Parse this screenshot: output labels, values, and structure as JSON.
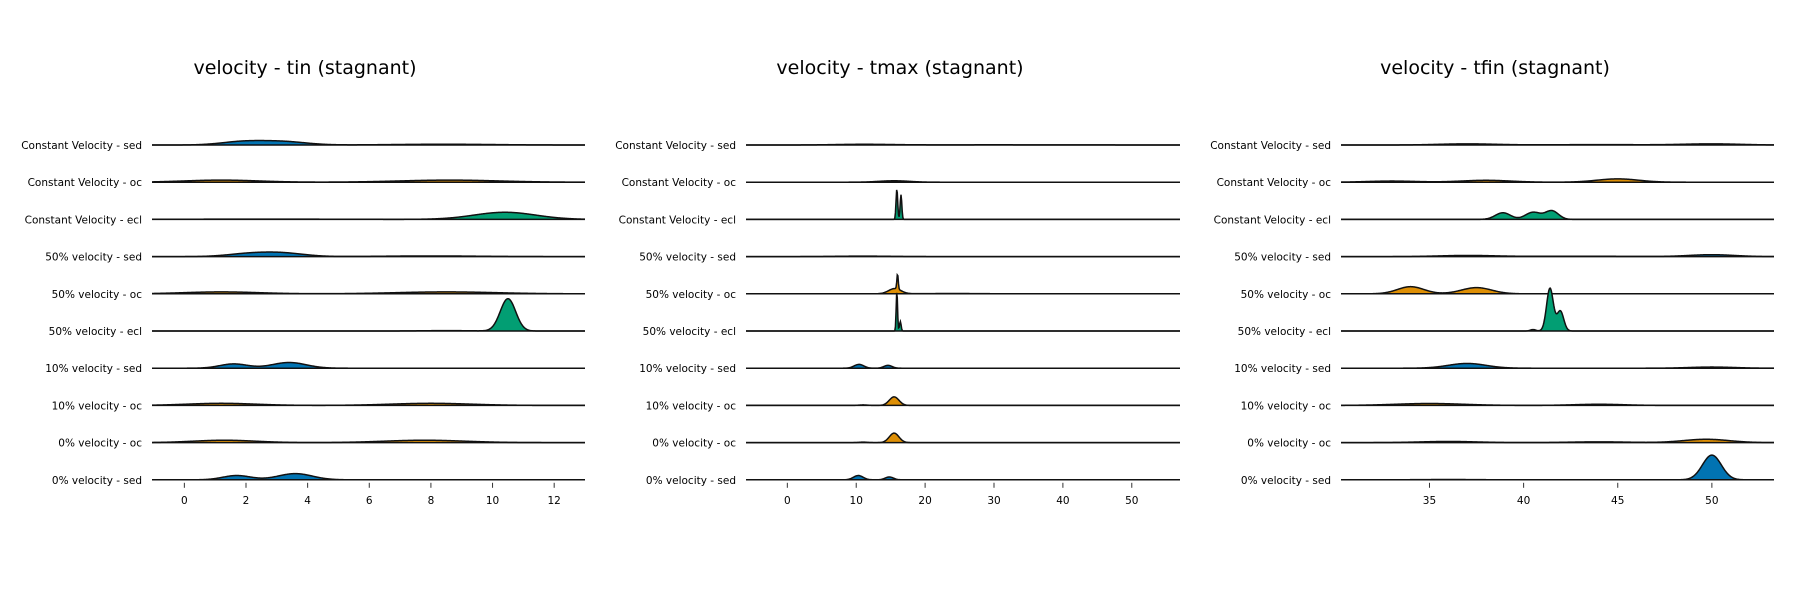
{
  "colors": {
    "sed": "#0173b2",
    "oc": "#de8f05",
    "ecl": "#029e73",
    "outline": "#111111"
  },
  "chart_data": [
    {
      "type": "area",
      "title": "velocity - tin (stagnant)",
      "xlim": [
        -1.05,
        13.0
      ],
      "ticks": [
        0,
        2,
        4,
        6,
        8,
        10,
        12
      ],
      "grid": false,
      "rows": [
        {
          "label": "Constant Velocity - sed",
          "color": "sed",
          "peaks": [
            [
              1.9,
              0.7,
              0.35
            ],
            [
              3.2,
              0.75,
              0.35
            ],
            [
              8.4,
              1.6,
              0.08
            ]
          ]
        },
        {
          "label": "Constant Velocity - oc",
          "color": "oc",
          "peaks": [
            [
              1.2,
              1.2,
              0.22
            ],
            [
              8.6,
              1.6,
              0.22
            ]
          ]
        },
        {
          "label": "Constant Velocity - ecl",
          "color": "ecl",
          "peaks": [
            [
              10.4,
              1.0,
              0.75
            ],
            [
              2.5,
              2.5,
              0.03
            ]
          ]
        },
        {
          "label": "50% velocity - sed",
          "color": "sed",
          "peaks": [
            [
              2.1,
              0.7,
              0.3
            ],
            [
              3.2,
              0.7,
              0.35
            ],
            [
              8.0,
              1.5,
              0.07
            ]
          ]
        },
        {
          "label": "50% velocity - oc",
          "color": "oc",
          "peaks": [
            [
              1.2,
              1.2,
              0.2
            ],
            [
              8.5,
              1.6,
              0.2
            ]
          ]
        },
        {
          "label": "50% velocity - ecl",
          "color": "ecl",
          "peaks": [
            [
              10.5,
              0.25,
              3.4
            ],
            [
              8.5,
              0.8,
              0.04
            ]
          ]
        },
        {
          "label": "10% velocity - sed",
          "color": "sed",
          "peaks": [
            [
              1.6,
              0.45,
              0.45
            ],
            [
              3.4,
              0.55,
              0.6
            ]
          ]
        },
        {
          "label": "10% velocity - oc",
          "color": "oc",
          "peaks": [
            [
              1.2,
              1.1,
              0.22
            ],
            [
              8.0,
              1.3,
              0.22
            ]
          ]
        },
        {
          "label": "0% velocity - oc",
          "color": "oc",
          "peaks": [
            [
              1.3,
              1.0,
              0.25
            ],
            [
              7.8,
              1.3,
              0.25
            ]
          ]
        },
        {
          "label": "0% velocity - sed",
          "color": "sed",
          "peaks": [
            [
              1.7,
              0.45,
              0.45
            ],
            [
              3.6,
              0.55,
              0.65
            ]
          ]
        }
      ]
    },
    {
      "type": "area",
      "title": "velocity - tmax (stagnant)",
      "xlim": [
        -6.0,
        57.0
      ],
      "ticks": [
        0,
        10,
        20,
        30,
        40,
        50
      ],
      "grid": false,
      "rows": [
        {
          "label": "Constant Velocity - sed",
          "color": "sed",
          "peaks": [
            [
              11.0,
              4.0,
              0.07
            ],
            [
              30.0,
              12.0,
              0.02
            ]
          ]
        },
        {
          "label": "Constant Velocity - oc",
          "color": "oc",
          "peaks": [
            [
              15.5,
              2.2,
              0.15
            ]
          ]
        },
        {
          "label": "Constant Velocity - ecl",
          "color": "ecl",
          "peaks": [
            [
              15.9,
              0.12,
              3.2
            ],
            [
              16.5,
              0.12,
              2.6
            ]
          ]
        },
        {
          "label": "50% velocity - sed",
          "color": "sed",
          "peaks": [
            [
              11.0,
              4.0,
              0.05
            ]
          ]
        },
        {
          "label": "50% velocity - oc",
          "color": "oc",
          "peaks": [
            [
              15.6,
              0.9,
              0.55
            ],
            [
              16.0,
              0.1,
              1.6
            ],
            [
              24.0,
              4.0,
              0.03
            ]
          ]
        },
        {
          "label": "50% velocity - ecl",
          "color": "ecl",
          "peaks": [
            [
              15.9,
              0.1,
              4.2
            ],
            [
              16.4,
              0.12,
              1.0
            ]
          ]
        },
        {
          "label": "10% velocity - sed",
          "color": "sed",
          "peaks": [
            [
              10.4,
              0.7,
              0.4
            ],
            [
              14.6,
              0.6,
              0.3
            ]
          ]
        },
        {
          "label": "10% velocity - oc",
          "color": "oc",
          "peaks": [
            [
              15.5,
              0.7,
              0.9
            ],
            [
              11.0,
              0.6,
              0.05
            ]
          ]
        },
        {
          "label": "0% velocity - oc",
          "color": "oc",
          "peaks": [
            [
              15.5,
              0.7,
              1.0
            ],
            [
              11.0,
              0.6,
              0.05
            ]
          ]
        },
        {
          "label": "0% velocity - sed",
          "color": "sed",
          "peaks": [
            [
              10.3,
              0.7,
              0.45
            ],
            [
              14.8,
              0.6,
              0.3
            ]
          ]
        }
      ]
    },
    {
      "type": "area",
      "title": "velocity - tfin (stagnant)",
      "xlim": [
        30.3,
        53.3
      ],
      "ticks": [
        35,
        40,
        45,
        50
      ],
      "grid": false,
      "rows": [
        {
          "label": "Constant Velocity - sed",
          "color": "sed",
          "peaks": [
            [
              37.0,
              1.5,
              0.12
            ],
            [
              50.0,
              1.5,
              0.12
            ],
            [
              44.0,
              2.5,
              0.04
            ]
          ]
        },
        {
          "label": "Constant Velocity - oc",
          "color": "oc",
          "peaks": [
            [
              33.0,
              1.3,
              0.12
            ],
            [
              38.0,
              1.3,
              0.2
            ],
            [
              45.0,
              1.1,
              0.35
            ]
          ]
        },
        {
          "label": "Constant Velocity - ecl",
          "color": "ecl",
          "peaks": [
            [
              38.9,
              0.4,
              0.7
            ],
            [
              40.5,
              0.4,
              0.75
            ],
            [
              41.5,
              0.35,
              0.9
            ]
          ]
        },
        {
          "label": "50% velocity - sed",
          "color": "sed",
          "peaks": [
            [
              37.0,
              1.5,
              0.12
            ],
            [
              50.0,
              1.2,
              0.2
            ],
            [
              43.0,
              2.5,
              0.04
            ]
          ]
        },
        {
          "label": "50% velocity - oc",
          "color": "oc",
          "peaks": [
            [
              34.0,
              0.7,
              0.75
            ],
            [
              37.5,
              0.8,
              0.65
            ]
          ]
        },
        {
          "label": "50% velocity - ecl",
          "color": "ecl",
          "peaks": [
            [
              41.4,
              0.18,
              4.5
            ],
            [
              41.95,
              0.18,
              2.1
            ],
            [
              40.5,
              0.15,
              0.15
            ]
          ]
        },
        {
          "label": "10% velocity - sed",
          "color": "sed",
          "peaks": [
            [
              37.0,
              1.0,
              0.5
            ],
            [
              50.0,
              1.2,
              0.12
            ]
          ]
        },
        {
          "label": "10% velocity - oc",
          "color": "oc",
          "peaks": [
            [
              35.0,
              1.8,
              0.2
            ],
            [
              44.0,
              1.3,
              0.12
            ]
          ]
        },
        {
          "label": "0% velocity - oc",
          "color": "oc",
          "peaks": [
            [
              36.0,
              1.5,
              0.12
            ],
            [
              44.0,
              1.5,
              0.08
            ],
            [
              49.7,
              1.2,
              0.35
            ]
          ]
        },
        {
          "label": "0% velocity - sed",
          "color": "sed",
          "peaks": [
            [
              50.0,
              0.5,
              2.6
            ],
            [
              36.0,
              1.5,
              0.03
            ]
          ]
        }
      ]
    }
  ]
}
